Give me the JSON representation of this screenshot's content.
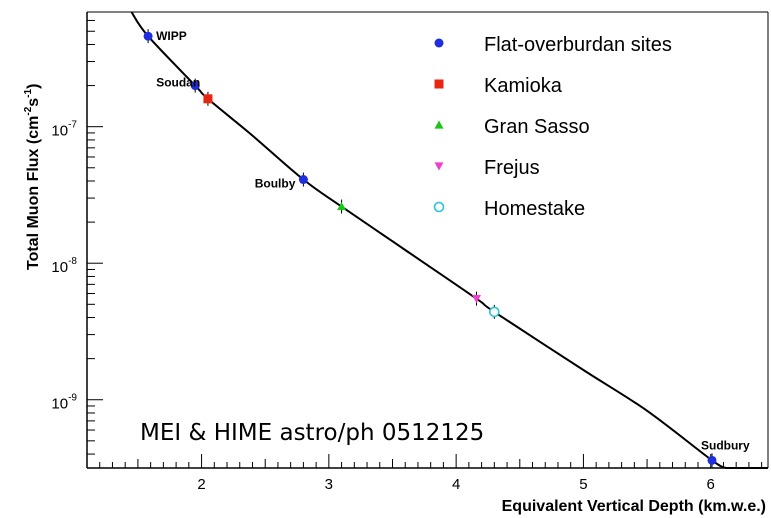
{
  "chart_data": {
    "type": "scatter",
    "title": "",
    "xlabel": "Equivalent Vertical Depth (km.w.e.)",
    "ylabel": {
      "prefix": "Total Muon Flux (cm",
      "sup1": "-2",
      "mid": "s",
      "sup2": "-1",
      "suffix": ")"
    },
    "xlim": [
      1.1,
      6.45
    ],
    "ylim_log10": [
      -9.5,
      -6.16
    ],
    "yscale": "log",
    "x_ticks": [
      {
        "value": 2,
        "label": "2"
      },
      {
        "value": 3,
        "label": "3"
      },
      {
        "value": 4,
        "label": "4"
      },
      {
        "value": 5,
        "label": "5"
      },
      {
        "value": 6,
        "label": "6"
      }
    ],
    "y_ticks": [
      {
        "exp": -7,
        "base": "10",
        "sup": "-7"
      },
      {
        "exp": -8,
        "base": "10",
        "sup": "-8"
      },
      {
        "exp": -9,
        "base": "10",
        "sup": "-9"
      }
    ],
    "series": [
      {
        "name": "Flat-overburdan sites",
        "marker": "circle",
        "color": "#1f2fe0",
        "points": [
          {
            "x": 1.58,
            "y": 4.6e-07,
            "label": "WIPP"
          },
          {
            "x": 1.95,
            "y": 2e-07,
            "label": "Soudan"
          },
          {
            "x": 2.8,
            "y": 4.1e-08,
            "label": "Boulby"
          },
          {
            "x": 6.01,
            "y": 3.6e-10,
            "label": "Sudbury"
          }
        ]
      },
      {
        "name": "Kamioka",
        "marker": "square",
        "color": "#e8250f",
        "points": [
          {
            "x": 2.05,
            "y": 1.6e-07,
            "label": ""
          }
        ]
      },
      {
        "name": "Gran Sasso",
        "marker": "triangle-up",
        "color": "#19c619",
        "points": [
          {
            "x": 3.1,
            "y": 2.6e-08,
            "label": ""
          }
        ]
      },
      {
        "name": "Frejus",
        "marker": "triangle-down",
        "color": "#f03fd0",
        "points": [
          {
            "x": 4.16,
            "y": 5.5e-09,
            "label": ""
          }
        ]
      },
      {
        "name": "Homestake",
        "marker": "circle-open",
        "color": "#29c4d8",
        "points": [
          {
            "x": 4.3,
            "y": 4.4e-09,
            "label": ""
          }
        ]
      }
    ],
    "fit_curve": [
      {
        "x": 1.45,
        "y": 6.9e-07
      },
      {
        "x": 1.58,
        "y": 4.6e-07
      },
      {
        "x": 1.95,
        "y": 2e-07
      },
      {
        "x": 2.05,
        "y": 1.6e-07
      },
      {
        "x": 2.4,
        "y": 8.6e-08
      },
      {
        "x": 2.8,
        "y": 4.1e-08
      },
      {
        "x": 3.1,
        "y": 2.6e-08
      },
      {
        "x": 3.6,
        "y": 1.25e-08
      },
      {
        "x": 4.16,
        "y": 5.5e-09
      },
      {
        "x": 4.3,
        "y": 4.4e-09
      },
      {
        "x": 5.0,
        "y": 1.65e-09
      },
      {
        "x": 5.5,
        "y": 8.3e-10
      },
      {
        "x": 6.01,
        "y": 3.6e-10
      },
      {
        "x": 6.12,
        "y": 3.16e-10
      }
    ],
    "annotation": "MEI & HIME astro/ph 0512125",
    "legend_position": "top-right",
    "grid": false
  }
}
